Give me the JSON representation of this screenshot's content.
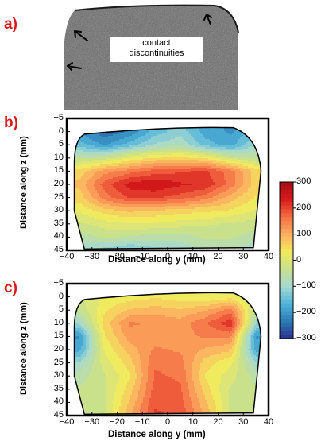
{
  "panel_letters": [
    "a)",
    "b)",
    "c)"
  ],
  "photo_label_line1": "contact",
  "photo_label_line2": "discontinuities",
  "colors": {
    "letter": "#d7191c",
    "colormap": [
      "#2b2f8f",
      "#2c7bb6",
      "#4fb3d9",
      "#a6d9d0",
      "#c8e08f",
      "#f2ea5c",
      "#fdae61",
      "#f46d43",
      "#d7191c",
      "#a50f15"
    ]
  },
  "chart_data": [
    {
      "type": "heatmap",
      "panel": "b)",
      "xlabel": "Distance along y (mm)",
      "ylabel": "Distance along z (mm)",
      "xlim": [
        -40,
        40
      ],
      "ylim": [
        45,
        -5
      ],
      "xticks": [
        "−40",
        "−30",
        "−20",
        "−10",
        "0",
        "10",
        "20",
        "30",
        "40"
      ],
      "yticks": [
        "−5",
        "0",
        "5",
        "10",
        "15",
        "20",
        "25",
        "30",
        "35",
        "40",
        "45"
      ],
      "description_values": {
        "z": [
          0,
          5,
          10,
          15,
          20,
          25,
          30,
          35,
          40,
          45
        ],
        "y": [
          -35,
          -25,
          -15,
          -5,
          5,
          15,
          25,
          35
        ],
        "values": [
          [
            -200,
            -250,
            -220,
            -150,
            -120,
            -180,
            -200,
            -150
          ],
          [
            -150,
            -200,
            -150,
            -100,
            -80,
            -150,
            -180,
            -100
          ],
          [
            -50,
            -30,
            20,
            50,
            60,
            40,
            -20,
            -50
          ],
          [
            60,
            120,
            150,
            180,
            190,
            200,
            150,
            60
          ],
          [
            80,
            180,
            240,
            250,
            230,
            220,
            150,
            60
          ],
          [
            60,
            150,
            200,
            200,
            180,
            150,
            90,
            40
          ],
          [
            20,
            60,
            80,
            70,
            60,
            50,
            40,
            10
          ],
          [
            -20,
            0,
            10,
            10,
            0,
            -10,
            -20,
            -30
          ],
          [
            -60,
            -40,
            -50,
            -60,
            -60,
            -40,
            -40,
            -60
          ],
          [
            -100,
            -120,
            -150,
            -120,
            -100,
            -80,
            -80,
            -100
          ]
        ]
      }
    },
    {
      "type": "heatmap",
      "panel": "c)",
      "xlabel": "Distance along y (mm)",
      "ylabel": "Distance along z (mm)",
      "xlim": [
        -40,
        40
      ],
      "ylim": [
        45,
        -5
      ],
      "xticks": [
        "−40",
        "−30",
        "−20",
        "−10",
        "0",
        "10",
        "20",
        "30",
        "40"
      ],
      "yticks": [
        "−5",
        "0",
        "5",
        "10",
        "15",
        "20",
        "25",
        "30",
        "35",
        "40",
        "45"
      ],
      "description_values": {
        "z": [
          0,
          5,
          10,
          15,
          20,
          25,
          30,
          35,
          40,
          45
        ],
        "y": [
          -35,
          -25,
          -15,
          -5,
          5,
          15,
          25,
          35
        ],
        "values": [
          [
            -20,
            20,
            30,
            40,
            30,
            20,
            30,
            -20
          ],
          [
            -40,
            40,
            80,
            90,
            80,
            100,
            150,
            -40
          ],
          [
            -100,
            60,
            140,
            130,
            120,
            160,
            220,
            -100
          ],
          [
            -200,
            40,
            120,
            120,
            120,
            140,
            140,
            -200
          ],
          [
            -180,
            20,
            90,
            140,
            130,
            100,
            80,
            -180
          ],
          [
            -100,
            0,
            60,
            160,
            150,
            60,
            20,
            -100
          ],
          [
            -60,
            -20,
            40,
            170,
            160,
            40,
            0,
            -60
          ],
          [
            -40,
            -20,
            60,
            180,
            170,
            60,
            -20,
            -40
          ],
          [
            -40,
            -20,
            80,
            190,
            180,
            80,
            -20,
            -40
          ],
          [
            -40,
            -20,
            100,
            200,
            190,
            100,
            -20,
            -40
          ]
        ]
      }
    },
    {
      "type": "colorbar",
      "ticks": [
        "300",
        "200",
        "100",
        "0",
        "−100",
        "−200",
        "−300"
      ],
      "range": [
        -300,
        300
      ]
    }
  ]
}
